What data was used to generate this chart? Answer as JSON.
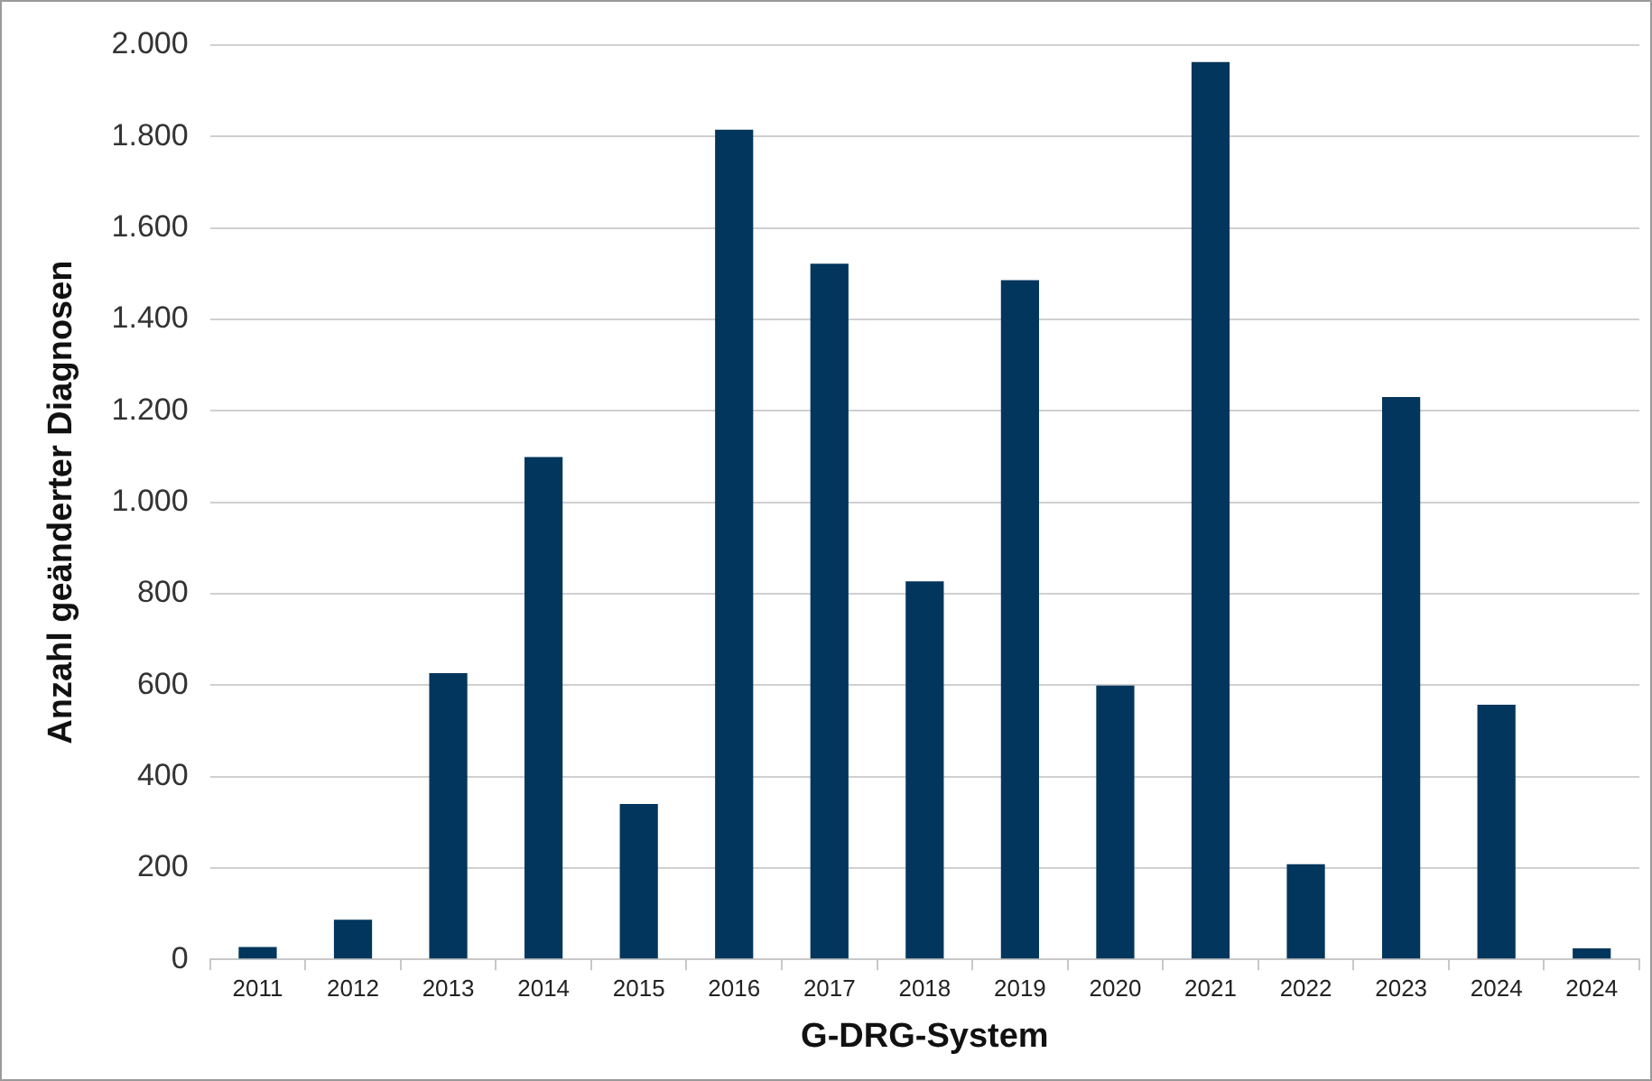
{
  "chart_data": {
    "type": "bar",
    "xlabel": "G-DRG-System",
    "ylabel": "Anzahl geänderter Diagnosen",
    "categories": [
      "2011",
      "2012",
      "2013",
      "2014",
      "2015",
      "2016",
      "2017",
      "2018",
      "2019",
      "2020",
      "2021",
      "2022",
      "2023",
      "2024",
      "2024"
    ],
    "values": [
      27,
      87,
      626,
      1099,
      340,
      1815,
      1522,
      827,
      1486,
      599,
      1963,
      208,
      1230,
      557,
      24
    ],
    "color": "#03365c",
    "ylim": [
      0,
      2000
    ],
    "yticks": [
      {
        "value": 0,
        "label": "0"
      },
      {
        "value": 200,
        "label": "200"
      },
      {
        "value": 400,
        "label": "400"
      },
      {
        "value": 600,
        "label": "600"
      },
      {
        "value": 800,
        "label": "800"
      },
      {
        "value": 1000,
        "label": "1.000"
      },
      {
        "value": 1200,
        "label": "1.200"
      },
      {
        "value": 1400,
        "label": "1.400"
      },
      {
        "value": 1600,
        "label": "1.600"
      },
      {
        "value": 1800,
        "label": "1.800"
      },
      {
        "value": 2000,
        "label": "2.000"
      }
    ],
    "grid": "y",
    "legend": false
  }
}
